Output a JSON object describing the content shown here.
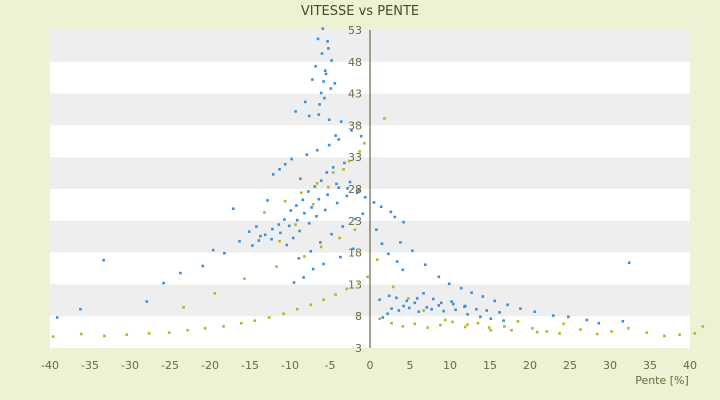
{
  "chart_data": {
    "type": "scatter",
    "title": "VITESSE vs PENTE",
    "xlabel": "Pente [%]",
    "ylabel": "",
    "xlim": [
      -40,
      40
    ],
    "ylim": [
      3,
      53
    ],
    "xticks": [
      -40,
      -35,
      -30,
      -25,
      -20,
      -15,
      -10,
      -5,
      0,
      5,
      10,
      15,
      20,
      25,
      30,
      35,
      40
    ],
    "yticks": [
      3,
      8,
      13,
      18,
      23,
      28,
      33,
      38,
      43,
      48,
      53
    ],
    "grid": "horizontal banded",
    "legend": "none",
    "colors": {
      "series_a": "#3a8fd8",
      "series_b": "#b8b428",
      "band": "#eeeeee",
      "plot_bg": "#ffffff",
      "axis": "#4a4a2a"
    },
    "series": [
      {
        "color": "#3a8fd8",
        "x": [
          -5.9,
          -6.5,
          -5.2,
          -4.8,
          -6.8,
          -5.5,
          -7.2,
          -4.4,
          -6.1,
          -5.7,
          -8.1,
          -9.3,
          -7.6,
          -3.6,
          -2.3,
          -1.1,
          -3.9,
          -5.1,
          -6.6,
          -7.9,
          -9.8,
          -10.6,
          -11.3,
          -12.1,
          -8.7,
          -4.2,
          -2.8,
          -1.6,
          -0.6,
          0.5,
          1.4,
          2.6,
          3.1,
          4.2,
          -14.2,
          -15.1,
          -13.7,
          -16.3,
          -18.2,
          -20.9,
          -23.7,
          -25.8,
          -27.9,
          -36.2,
          -39.1,
          -33.3,
          -19.6,
          -17.1,
          -12.8,
          3.8,
          5.3,
          6.9,
          8.6,
          9.9,
          11.4,
          12.7,
          14.1,
          15.6,
          17.2,
          18.8,
          20.6,
          22.9,
          24.8,
          27.1,
          28.6,
          31.6,
          32.4,
          2.7,
          4.2,
          5.6,
          7.1,
          8.6,
          10.2,
          11.8,
          13.3,
          14.6,
          16.2,
          1.6,
          2.2,
          3.6,
          4.9,
          6.1,
          7.7,
          9.2,
          10.7,
          12.2,
          13.8,
          15.1,
          16.7,
          1.2,
          2.4,
          3.3,
          4.6,
          5.9,
          6.7,
          7.9,
          8.9,
          10.4,
          11.9,
          -3.2,
          -4.6,
          -5.4,
          -6.1,
          -6.9,
          -7.7,
          -8.4,
          -9.2,
          -9.9,
          -10.7,
          -11.4,
          -12.2,
          -13.1,
          -13.9,
          -14.7,
          -2.5,
          -3.9,
          -5.3,
          -6.4,
          -7.3,
          -8.2,
          -9.1,
          -10.1,
          -11.2,
          -12.3,
          -1.4,
          -2.9,
          -4.1,
          -5.6,
          -6.7,
          -7.6,
          -8.8,
          -9.6,
          -10.4,
          -0.9,
          -1.8,
          -3.4,
          -4.8,
          -6.2,
          -7.4,
          -8.9,
          0.8,
          1.5,
          2.3,
          3.4,
          4.1,
          -2.1,
          -3.7,
          -5.8,
          -7.1,
          -8.3,
          -9.5,
          -4.3,
          -5.1,
          -6.3,
          -4.9,
          -5.6,
          -6.0,
          -5.3,
          -5.8,
          -6.4
        ],
        "y": [
          53.2,
          51.6,
          50.1,
          48.2,
          47.3,
          46.1,
          45.2,
          44.6,
          43.1,
          42.3,
          41.7,
          40.2,
          39.5,
          38.6,
          37.2,
          36.3,
          35.8,
          34.9,
          34.1,
          33.4,
          32.7,
          31.9,
          31.1,
          30.3,
          29.6,
          28.8,
          28.1,
          27.4,
          26.7,
          25.9,
          25.2,
          24.4,
          23.6,
          22.8,
          22.1,
          21.3,
          20.6,
          19.8,
          17.9,
          15.9,
          14.8,
          13.2,
          10.3,
          9.1,
          7.8,
          16.8,
          18.4,
          24.9,
          26.2,
          19.6,
          18.3,
          16.1,
          14.2,
          13.1,
          12.4,
          11.7,
          11.1,
          10.4,
          9.8,
          9.2,
          8.7,
          8.1,
          7.9,
          7.4,
          6.9,
          7.2,
          16.4,
          9.2,
          9.6,
          10.1,
          9.4,
          9.7,
          10.3,
          9.5,
          9.1,
          8.9,
          8.6,
          7.8,
          8.4,
          8.9,
          9.3,
          8.7,
          9.1,
          8.8,
          9.0,
          8.3,
          7.9,
          7.6,
          7.3,
          10.6,
          11.2,
          10.9,
          10.4,
          10.8,
          11.6,
          10.7,
          10.1,
          9.9,
          9.6,
          32.1,
          31.4,
          30.6,
          29.3,
          28.4,
          27.6,
          26.3,
          25.4,
          24.6,
          23.2,
          22.4,
          21.7,
          20.8,
          19.9,
          19.1,
          29.1,
          28.2,
          27.1,
          26.4,
          25.1,
          24.2,
          23.1,
          22.2,
          21.1,
          20.1,
          27.8,
          26.9,
          25.8,
          24.7,
          23.7,
          22.6,
          21.4,
          20.3,
          19.2,
          24.1,
          23.3,
          22.1,
          20.9,
          19.6,
          18.2,
          17.1,
          21.6,
          19.4,
          17.8,
          16.6,
          15.3,
          18.6,
          17.3,
          16.2,
          15.4,
          14.1,
          13.3,
          36.4,
          38.9,
          41.3,
          43.8,
          46.6,
          49.3,
          51.2,
          44.9,
          39.7
        ]
      },
      {
        "color": "#b8b428",
        "x": [
          -39.6,
          -36.1,
          -33.2,
          -30.4,
          -27.6,
          -25.1,
          -22.8,
          -20.6,
          -18.3,
          -16.1,
          -14.4,
          -12.6,
          -10.8,
          -9.1,
          -7.4,
          -5.8,
          -4.3,
          -2.9,
          -1.4,
          -0.3,
          1.2,
          2.7,
          4.1,
          5.6,
          7.2,
          8.8,
          10.3,
          11.9,
          13.5,
          15.1,
          16.8,
          18.5,
          20.3,
          22.1,
          24.2,
          26.3,
          28.4,
          30.2,
          32.3,
          34.6,
          36.8,
          38.7,
          40.6,
          41.6,
          -23.3,
          -19.4,
          -15.7,
          -11.7,
          -8.2,
          -6.1,
          -3.8,
          -1.9,
          0.9,
          2.9,
          4.8,
          6.7,
          9.4,
          12.2,
          14.9,
          17.7,
          20.9,
          23.7,
          -13.2,
          -10.6,
          -8.6,
          -6.6,
          -4.6,
          -2.6,
          -0.7,
          1.8,
          -11.3,
          -9.3,
          -7.1,
          -5.2,
          -3.3,
          -1.3
        ],
        "y": [
          4.8,
          5.2,
          4.9,
          5.1,
          5.3,
          5.4,
          5.8,
          6.1,
          6.4,
          6.9,
          7.3,
          7.8,
          8.4,
          9.1,
          9.8,
          10.6,
          11.4,
          12.3,
          13.1,
          14.2,
          7.6,
          6.9,
          6.4,
          6.8,
          6.2,
          6.6,
          7.1,
          6.3,
          6.9,
          5.8,
          6.4,
          7.2,
          6.1,
          5.6,
          6.8,
          5.9,
          5.2,
          5.6,
          6.1,
          5.4,
          4.9,
          5.1,
          5.3,
          6.4,
          9.4,
          11.6,
          13.9,
          15.8,
          17.4,
          18.9,
          20.3,
          21.6,
          16.9,
          12.6,
          10.8,
          8.9,
          7.4,
          6.7,
          6.2,
          5.8,
          5.5,
          5.3,
          24.3,
          26.1,
          27.4,
          28.9,
          30.6,
          32.4,
          35.2,
          39.1,
          19.8,
          22.4,
          25.6,
          28.3,
          31.1,
          33.9
        ]
      }
    ]
  }
}
